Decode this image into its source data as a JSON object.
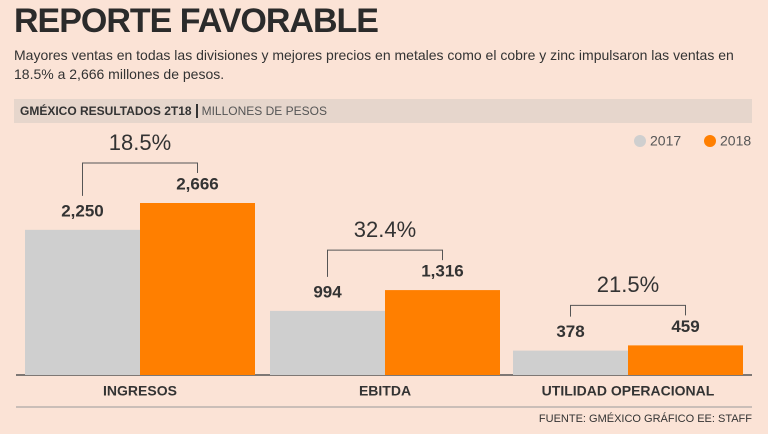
{
  "chart_data": {
    "type": "bar",
    "title": "REPORTE FAVORABLE",
    "subtitle": "Mayores ventas en todas las divisiones y mejores precios en metales como el cobre y zinc impulsaron las ventas en 18.5% a 2,666 millones de pesos.",
    "band_title": "GMÉXICO RESULTADOS 2T18",
    "band_unit": "MILLONES DE PESOS",
    "categories": [
      "INGRESOS",
      "EBITDA",
      "UTILIDAD OPERACIONAL"
    ],
    "series": [
      {
        "name": "2017",
        "color": "#cfcfcf",
        "values": [
          2250,
          994,
          378
        ],
        "value_labels": [
          "2,250",
          "994",
          "378"
        ]
      },
      {
        "name": "2018",
        "color": "#ff7f00",
        "values": [
          2666,
          1316,
          459
        ],
        "value_labels": [
          "2,666",
          "1,316",
          "459"
        ]
      }
    ],
    "growth_labels": [
      "18.5%",
      "32.4%",
      "21.5%"
    ],
    "source": "FUENTE: GMÉXICO GRÁFICO EE: STAFF"
  }
}
